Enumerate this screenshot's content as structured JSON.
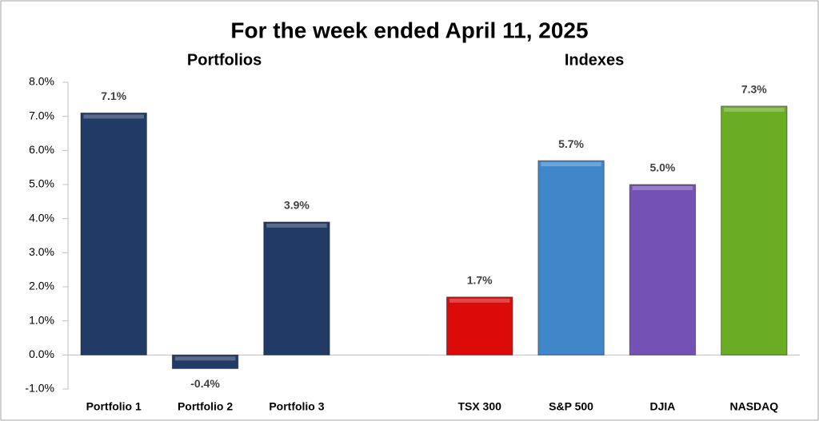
{
  "chart_data": {
    "type": "bar",
    "title": "For the week ended April 11, 2025",
    "annotations": [
      "Portfolios",
      "Indexes"
    ],
    "categories": [
      "Portfolio 1",
      "Portfolio 2",
      "Portfolio 3",
      null,
      "TSX 300",
      "S&P 500",
      "DJIA",
      "NASDAQ"
    ],
    "values": [
      7.1,
      -0.4,
      3.9,
      null,
      1.7,
      5.7,
      5.0,
      7.3
    ],
    "value_labels": [
      "7.1%",
      "-0.4%",
      "3.9%",
      null,
      "1.7%",
      "5.7%",
      "5.0%",
      "7.3%"
    ],
    "colors": [
      "#223a66",
      "#223a66",
      "#223a66",
      null,
      "#dd0a0a",
      "#3f87c9",
      "#7452b5",
      "#6aac24"
    ],
    "ylim": [
      -1.0,
      8.0
    ],
    "yticks": [
      {
        "value": -1.0,
        "label": "-1.0%"
      },
      {
        "value": 0.0,
        "label": "0.0%"
      },
      {
        "value": 1.0,
        "label": "1.0%"
      },
      {
        "value": 2.0,
        "label": "2.0%"
      },
      {
        "value": 3.0,
        "label": "3.0%"
      },
      {
        "value": 4.0,
        "label": "4.0%"
      },
      {
        "value": 5.0,
        "label": "5.0%"
      },
      {
        "value": 6.0,
        "label": "6.0%"
      },
      {
        "value": 7.0,
        "label": "7.0%"
      },
      {
        "value": 8.0,
        "label": "8.0%"
      }
    ],
    "grid": false
  }
}
